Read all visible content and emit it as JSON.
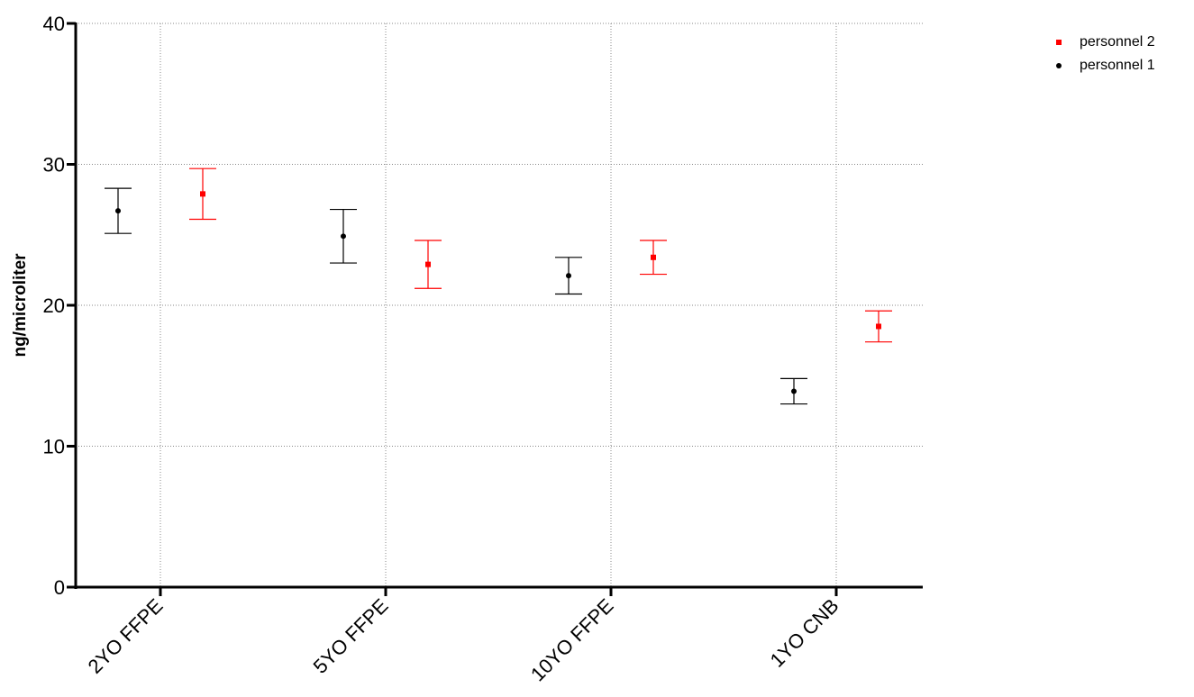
{
  "chart_data": {
    "type": "scatter",
    "categories": [
      "2YO FFPE",
      "5YO FFPE",
      "10YO FFPE",
      "1YO CNB"
    ],
    "ylabel": "ng/microliter",
    "xlabel": "",
    "ylim": [
      0,
      40
    ],
    "yticks": [
      0,
      10,
      20,
      30,
      40
    ],
    "grid": true,
    "legend_position": "top-right",
    "series": [
      {
        "name": "personnel 1",
        "color": "#000000",
        "marker": "circle",
        "values": [
          26.7,
          24.9,
          22.1,
          13.9
        ],
        "err_low": [
          25.1,
          23.0,
          20.8,
          13.0
        ],
        "err_high": [
          28.3,
          26.8,
          23.4,
          14.8
        ]
      },
      {
        "name": "personnel 2",
        "color": "#ff0000",
        "marker": "square",
        "values": [
          27.9,
          22.9,
          23.4,
          18.5
        ],
        "err_low": [
          26.1,
          21.2,
          22.2,
          17.4
        ],
        "err_high": [
          29.7,
          24.6,
          24.6,
          19.6
        ]
      }
    ]
  },
  "legend": [
    {
      "label": "personnel 2",
      "color": "#ff0000",
      "marker": "square"
    },
    {
      "label": "personnel 1",
      "color": "#000000",
      "marker": "circle"
    }
  ]
}
